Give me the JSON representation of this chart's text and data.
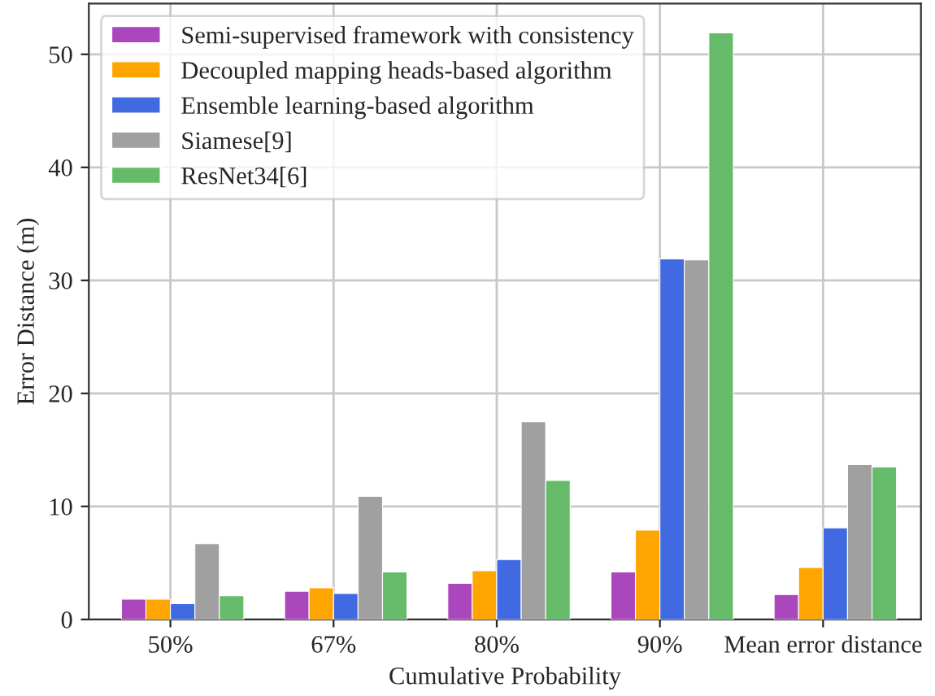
{
  "chart_data": {
    "type": "bar",
    "xlabel": "Cumulative Probability",
    "ylabel": "Error Distance (m)",
    "categories": [
      "50%",
      "67%",
      "80%",
      "90%",
      "Mean error distance"
    ],
    "series": [
      {
        "name": "Semi-supervised framework with consistency",
        "color": "#ab47bc",
        "values": [
          1.8,
          2.5,
          3.2,
          4.2,
          2.2
        ]
      },
      {
        "name": "Decoupled mapping heads-based algorithm",
        "color": "#ffa500",
        "values": [
          1.8,
          2.8,
          4.3,
          7.9,
          4.6
        ]
      },
      {
        "name": "Ensemble learning-based algorithm",
        "color": "#4169e1",
        "values": [
          1.4,
          2.3,
          5.3,
          31.9,
          8.1
        ]
      },
      {
        "name": "Siamese[9]",
        "color": "#a0a0a0",
        "values": [
          6.7,
          10.9,
          17.5,
          31.8,
          13.7
        ]
      },
      {
        "name": "ResNet34[6]",
        "color": "#66bb6a",
        "values": [
          2.1,
          4.2,
          12.3,
          51.9,
          13.5
        ]
      }
    ],
    "ylim": [
      0,
      54.5
    ],
    "yticks": [
      0,
      10,
      20,
      30,
      40,
      50
    ],
    "grid": true,
    "legend": "top left"
  }
}
